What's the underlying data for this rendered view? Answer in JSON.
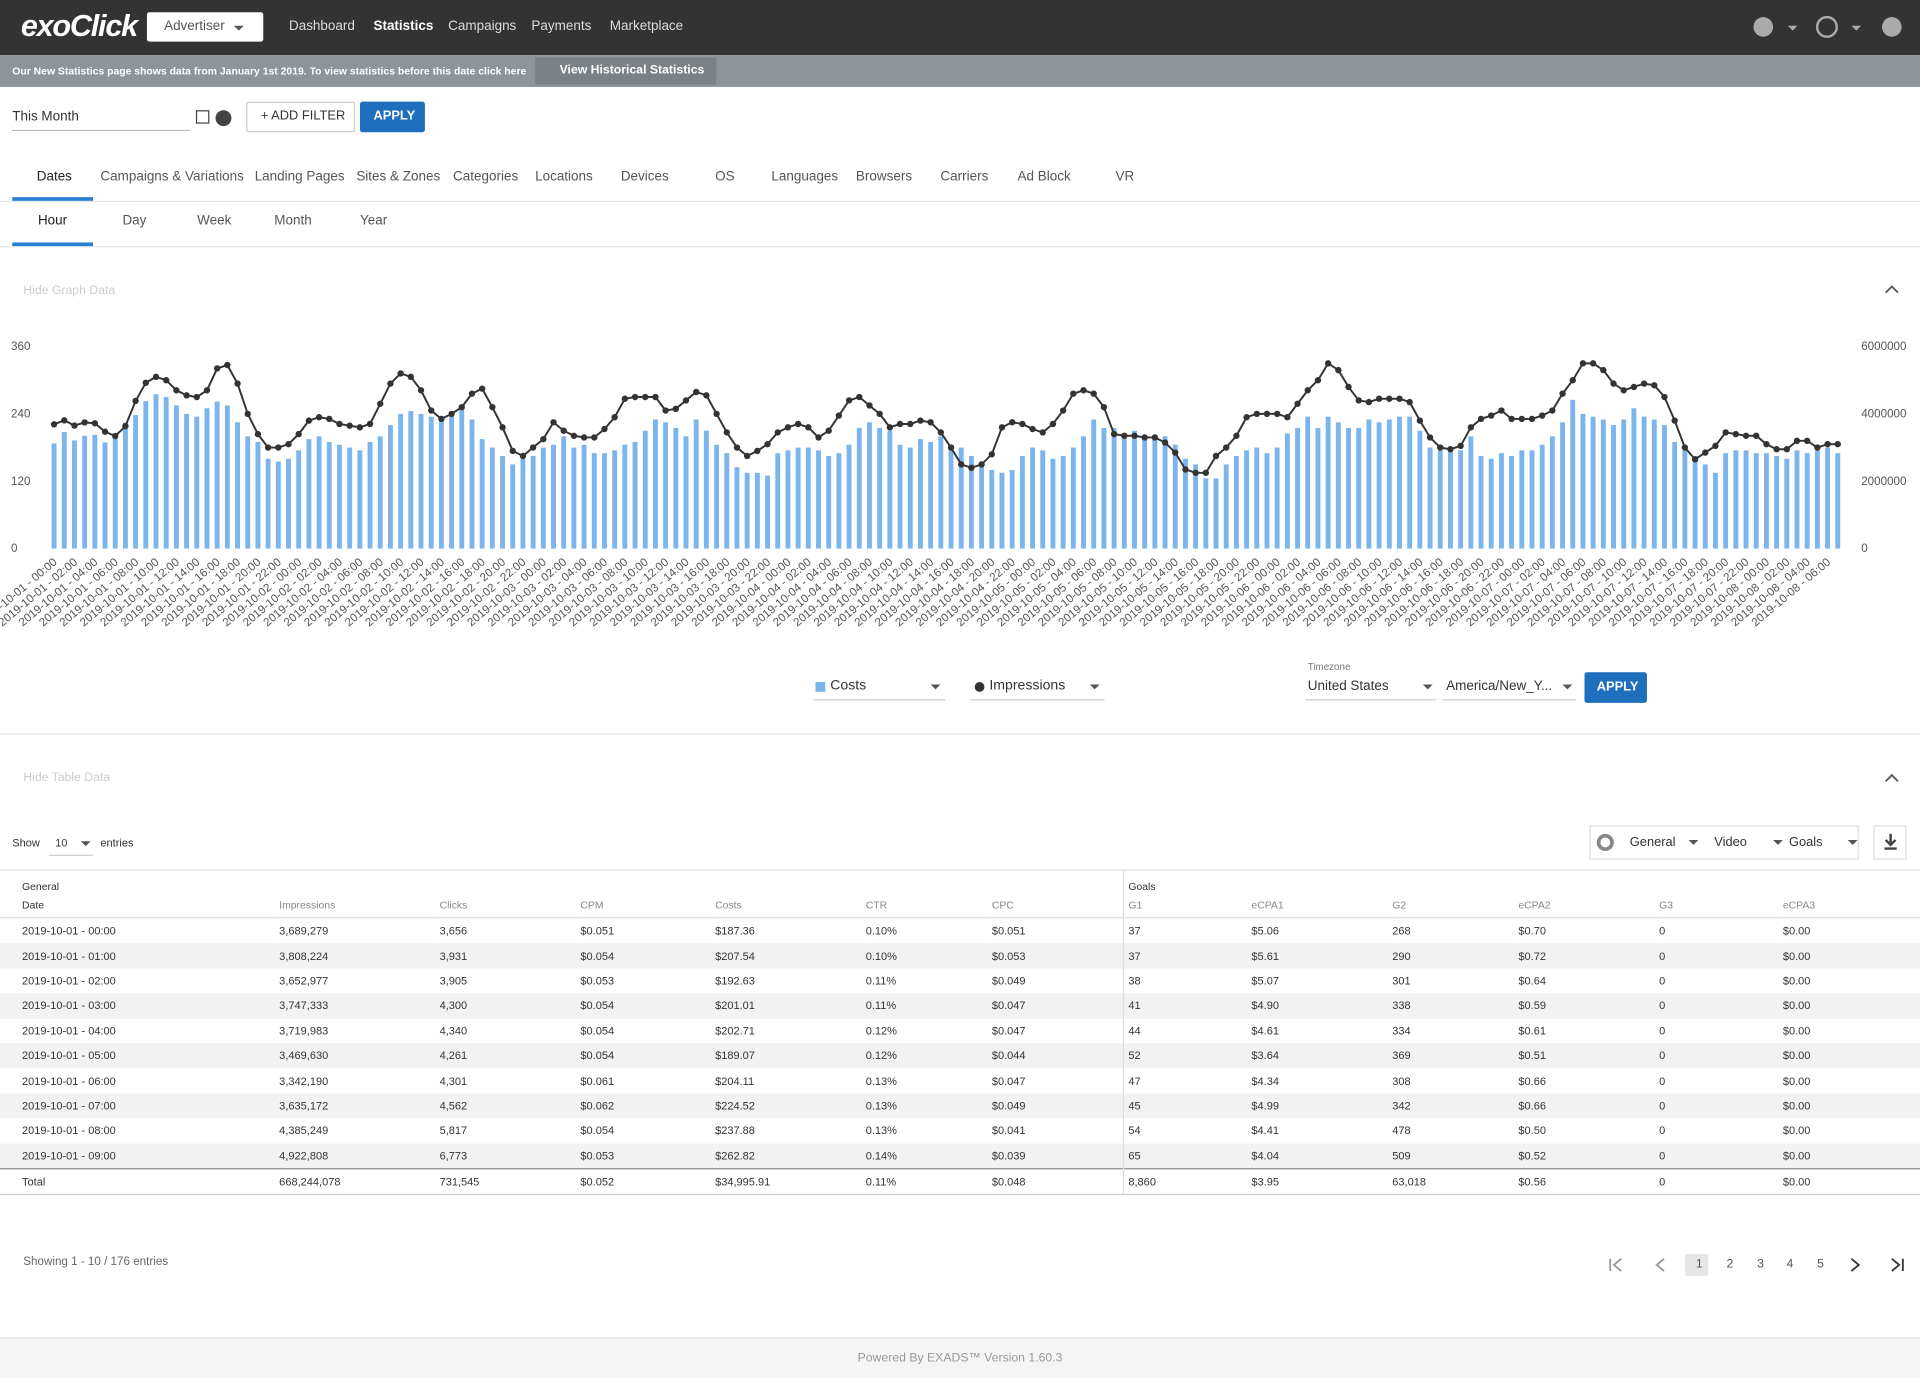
{
  "nav": {
    "logo": "exoClick",
    "role": "Advertiser",
    "items": [
      "Dashboard",
      "Statistics",
      "Campaigns",
      "Payments",
      "Marketplace"
    ]
  },
  "banner": {
    "text": "Our New Statistics page shows data from January 1st 2019. To view statistics before this date click here",
    "button": "View Historical Statistics"
  },
  "filters": {
    "period": "This Month",
    "add_filter": "+ ADD FILTER",
    "apply": "APPLY"
  },
  "tabs": [
    "Dates",
    "Campaigns & Variations",
    "Landing Pages",
    "Sites & Zones",
    "Categories",
    "Locations",
    "Devices",
    "OS",
    "Languages",
    "Browsers",
    "Carriers",
    "Ad Block",
    "VR"
  ],
  "subtabs": [
    "Hour",
    "Day",
    "Week",
    "Month",
    "Year"
  ],
  "graph_toggle": "Hide Graph Data",
  "chart_data": {
    "type": "bar",
    "categories": [
      "2019-10-01 - 00:00",
      null,
      "2019-10-01 - 02:00",
      null,
      "2019-10-01 - 04:00",
      null,
      "2019-10-01 - 06:00",
      null,
      "2019-10-01 - 08:00",
      null,
      "2019-10-01 - 10:00",
      null,
      "2019-10-01 - 12:00",
      null,
      "2019-10-01 - 14:00",
      null,
      "2019-10-01 - 16:00",
      null,
      "2019-10-01 - 18:00",
      null,
      "2019-10-01 - 20:00",
      null,
      "2019-10-01 - 22:00",
      null,
      "2019-10-02 - 00:00",
      null,
      "2019-10-02 - 02:00",
      null,
      "2019-10-02 - 04:00",
      null,
      "2019-10-02 - 06:00",
      null,
      "2019-10-02 - 08:00",
      null,
      "2019-10-02 - 10:00",
      null,
      "2019-10-02 - 12:00",
      null,
      "2019-10-02 - 14:00",
      null,
      "2019-10-02 - 16:00",
      null,
      "2019-10-02 - 18:00",
      null,
      "2019-10-02 - 20:00",
      null,
      "2019-10-02 - 22:00",
      null,
      "2019-10-03 - 00:00",
      null,
      "2019-10-03 - 02:00",
      null,
      "2019-10-03 - 04:00",
      null,
      "2019-10-03 - 06:00",
      null,
      "2019-10-03 - 08:00",
      null,
      "2019-10-03 - 10:00",
      null,
      "2019-10-03 - 12:00",
      null,
      "2019-10-03 - 14:00",
      null,
      "2019-10-03 - 16:00",
      null,
      "2019-10-03 - 18:00",
      null,
      "2019-10-03 - 20:00",
      null,
      "2019-10-03 - 22:00",
      null,
      "2019-10-04 - 00:00",
      null,
      "2019-10-04 - 02:00",
      null,
      "2019-10-04 - 04:00",
      null,
      "2019-10-04 - 06:00",
      null,
      "2019-10-04 - 08:00",
      null,
      "2019-10-04 - 10:00",
      null,
      "2019-10-04 - 12:00",
      null,
      "2019-10-04 - 14:00",
      null,
      "2019-10-04 - 16:00",
      null,
      "2019-10-04 - 18:00",
      null,
      "2019-10-04 - 20:00",
      null,
      "2019-10-04 - 22:00",
      null,
      "2019-10-05 - 00:00",
      null,
      "2019-10-05 - 02:00",
      null,
      "2019-10-05 - 04:00",
      null,
      "2019-10-05 - 06:00",
      null,
      "2019-10-05 - 08:00",
      null,
      "2019-10-05 - 10:00",
      null,
      "2019-10-05 - 12:00",
      null,
      "2019-10-05 - 14:00",
      null,
      "2019-10-05 - 16:00",
      null,
      "2019-10-05 - 18:00",
      null,
      "2019-10-05 - 20:00",
      null,
      "2019-10-05 - 22:00",
      null,
      "2019-10-06 - 00:00",
      null,
      "2019-10-06 - 02:00",
      null,
      "2019-10-06 - 04:00",
      null,
      "2019-10-06 - 06:00",
      null,
      "2019-10-06 - 08:00",
      null,
      "2019-10-06 - 10:00",
      null,
      "2019-10-06 - 12:00",
      null,
      "2019-10-06 - 14:00",
      null,
      "2019-10-06 - 16:00",
      null,
      "2019-10-06 - 18:00",
      null,
      "2019-10-06 - 20:00",
      null,
      "2019-10-06 - 22:00",
      null,
      "2019-10-07 - 00:00",
      null,
      "2019-10-07 - 02:00",
      null,
      "2019-10-07 - 04:00",
      null,
      "2019-10-07 - 06:00",
      null,
      "2019-10-07 - 08:00",
      null,
      "2019-10-07 - 10:00",
      null,
      "2019-10-07 - 12:00",
      null,
      "2019-10-07 - 14:00",
      null,
      "2019-10-07 - 16:00",
      null,
      "2019-10-07 - 18:00",
      null,
      "2019-10-07 - 20:00",
      null,
      "2019-10-07 - 22:00",
      null,
      "2019-10-08 - 00:00",
      null,
      "2019-10-08 - 02:00",
      null,
      "2019-10-08 - 04:00",
      null,
      "2019-10-08 - 06:00",
      null
    ],
    "series": [
      {
        "name": "Costs",
        "type": "bar",
        "color": "#7cb5ec",
        "values": [
          187.36,
          207.54,
          192.63,
          201.01,
          202.71,
          189.07,
          204.11,
          224.52,
          237.88,
          262.82,
          275,
          270,
          255,
          240,
          235,
          250,
          262,
          255,
          225,
          200,
          190,
          160,
          155,
          160,
          175,
          195,
          200,
          190,
          185,
          180,
          175,
          190,
          200,
          220,
          240,
          245,
          240,
          235,
          230,
          245,
          255,
          230,
          195,
          180,
          165,
          150,
          160,
          165,
          180,
          185,
          200,
          180,
          185,
          170,
          170,
          175,
          185,
          190,
          210,
          230,
          225,
          215,
          200,
          230,
          210,
          185,
          170,
          145,
          135,
          135,
          130,
          170,
          175,
          180,
          180,
          175,
          165,
          170,
          185,
          215,
          225,
          215,
          210,
          185,
          180,
          195,
          190,
          200,
          185,
          180,
          165,
          145,
          140,
          135,
          140,
          165,
          180,
          175,
          160,
          165,
          180,
          200,
          230,
          215,
          215,
          205,
          210,
          200,
          195,
          200,
          185,
          160,
          150,
          125,
          125,
          150,
          165,
          175,
          180,
          170,
          180,
          205,
          215,
          235,
          215,
          235,
          225,
          215,
          215,
          230,
          225,
          230,
          235,
          235,
          210,
          180,
          175,
          175,
          175,
          200,
          165,
          160,
          170,
          165,
          175,
          175,
          185,
          200,
          225,
          265,
          240,
          235,
          230,
          220,
          230,
          250,
          235,
          230,
          220,
          190,
          175,
          165,
          150,
          135,
          170,
          175,
          175,
          170,
          170,
          165,
          160,
          175,
          170,
          175,
          180,
          170
        ]
      },
      {
        "name": "Impressions",
        "type": "line",
        "axis": "y2",
        "color": "#333333",
        "values": [
          3689279,
          3808224,
          3652977,
          3747333,
          3719983,
          3469630,
          3342190,
          3635172,
          4385249,
          4922808,
          5100000,
          5000000,
          4700000,
          4550000,
          4500000,
          4700000,
          5350000,
          5450000,
          4900000,
          4000000,
          3400000,
          3000000,
          3000000,
          3100000,
          3400000,
          3800000,
          3900000,
          3850000,
          3700000,
          3650000,
          3600000,
          3700000,
          4300000,
          4900000,
          5200000,
          5100000,
          4700000,
          4100000,
          3850000,
          4000000,
          4200000,
          4600000,
          4750000,
          4200000,
          3600000,
          2900000,
          2750000,
          3000000,
          3250000,
          3750000,
          3500000,
          3350000,
          3300000,
          3300000,
          3550000,
          3900000,
          4450000,
          4500000,
          4500000,
          4500000,
          4100000,
          4150000,
          4400000,
          4650000,
          4550000,
          4000000,
          3450000,
          3000000,
          2750000,
          2900000,
          3100000,
          3450000,
          3600000,
          3700000,
          3600000,
          3300000,
          3500000,
          3950000,
          4400000,
          4500000,
          4250000,
          4000000,
          3600000,
          3700000,
          3700000,
          3800000,
          3750000,
          3450000,
          3000000,
          2500000,
          2400000,
          2500000,
          2800000,
          3600000,
          3750000,
          3700000,
          3550000,
          3450000,
          3700000,
          4100000,
          4600000,
          4700000,
          4600000,
          4200000,
          3400000,
          3350000,
          3350000,
          3300000,
          3300000,
          3150000,
          2850000,
          2350000,
          2250000,
          2250000,
          2750000,
          3000000,
          3350000,
          3900000,
          4000000,
          4000000,
          4000000,
          3900000,
          4300000,
          4700000,
          5000000,
          5500000,
          5300000,
          4800000,
          4400000,
          4350000,
          4450000,
          4450000,
          4450000,
          4350000,
          3800000,
          3300000,
          3000000,
          2950000,
          3050000,
          3600000,
          3850000,
          3950000,
          4100000,
          3850000,
          3850000,
          3850000,
          3950000,
          4100000,
          4600000,
          5000000,
          5500000,
          5500000,
          5300000,
          4900000,
          4700000,
          4800000,
          4900000,
          4850000,
          4500000,
          3800000,
          3000000,
          2650000,
          2850000,
          3050000,
          3450000,
          3400000,
          3350000,
          3350000,
          3100000,
          2950000,
          2950000,
          3200000,
          3200000,
          3000000,
          3100000,
          3100000
        ]
      }
    ],
    "ylim": [
      0,
      360
    ],
    "yticks": [
      0,
      120,
      240,
      360
    ],
    "y2lim": [
      0,
      6000000
    ],
    "y2ticks": [
      0,
      2000000,
      4000000,
      6000000
    ]
  },
  "timezone": {
    "label": "Timezone",
    "country": "United States",
    "zone": "America/New_Y...",
    "apply": "APPLY"
  },
  "table_toggle": "Hide Table Data",
  "entries": {
    "show": "Show",
    "count": "10",
    "suffix": "entries"
  },
  "table_controls": [
    "General",
    "Video",
    "Goals"
  ],
  "table": {
    "groups": [
      "General",
      "Goals"
    ],
    "columns": [
      "Date",
      "Impressions",
      "Clicks",
      "CPM",
      "Costs",
      "CTR",
      "CPC",
      "G1",
      "eCPA1",
      "G2",
      "eCPA2",
      "G3",
      "eCPA3"
    ],
    "rows": [
      [
        "2019-10-01 - 00:00",
        "3,689,279",
        "3,656",
        "$0.051",
        "$187.36",
        "0.10%",
        "$0.051",
        "37",
        "$5.06",
        "268",
        "$0.70",
        "0",
        "$0.00"
      ],
      [
        "2019-10-01 - 01:00",
        "3,808,224",
        "3,931",
        "$0.054",
        "$207.54",
        "0.10%",
        "$0.053",
        "37",
        "$5.61",
        "290",
        "$0.72",
        "0",
        "$0.00"
      ],
      [
        "2019-10-01 - 02:00",
        "3,652,977",
        "3,905",
        "$0.053",
        "$192.63",
        "0.11%",
        "$0.049",
        "38",
        "$5.07",
        "301",
        "$0.64",
        "0",
        "$0.00"
      ],
      [
        "2019-10-01 - 03:00",
        "3,747,333",
        "4,300",
        "$0.054",
        "$201.01",
        "0.11%",
        "$0.047",
        "41",
        "$4.90",
        "338",
        "$0.59",
        "0",
        "$0.00"
      ],
      [
        "2019-10-01 - 04:00",
        "3,719,983",
        "4,340",
        "$0.054",
        "$202.71",
        "0.12%",
        "$0.047",
        "44",
        "$4.61",
        "334",
        "$0.61",
        "0",
        "$0.00"
      ],
      [
        "2019-10-01 - 05:00",
        "3,469,630",
        "4,261",
        "$0.054",
        "$189.07",
        "0.12%",
        "$0.044",
        "52",
        "$3.64",
        "369",
        "$0.51",
        "0",
        "$0.00"
      ],
      [
        "2019-10-01 - 06:00",
        "3,342,190",
        "4,301",
        "$0.061",
        "$204.11",
        "0.13%",
        "$0.047",
        "47",
        "$4.34",
        "308",
        "$0.66",
        "0",
        "$0.00"
      ],
      [
        "2019-10-01 - 07:00",
        "3,635,172",
        "4,562",
        "$0.062",
        "$224.52",
        "0.13%",
        "$0.049",
        "45",
        "$4.99",
        "342",
        "$0.66",
        "0",
        "$0.00"
      ],
      [
        "2019-10-01 - 08:00",
        "4,385,249",
        "5,817",
        "$0.054",
        "$237.88",
        "0.13%",
        "$0.041",
        "54",
        "$4.41",
        "478",
        "$0.50",
        "0",
        "$0.00"
      ],
      [
        "2019-10-01 - 09:00",
        "4,922,808",
        "6,773",
        "$0.053",
        "$262.82",
        "0.14%",
        "$0.039",
        "65",
        "$4.04",
        "509",
        "$0.52",
        "0",
        "$0.00"
      ]
    ],
    "total": [
      "Total",
      "668,244,078",
      "731,545",
      "$0.052",
      "$34,995.91",
      "0.11%",
      "$0.048",
      "8,860",
      "$3.95",
      "63,018",
      "$0.56",
      "0",
      "$0.00"
    ]
  },
  "pagination": {
    "summary": "Showing 1 - 10 / 176 entries",
    "pages": [
      "1",
      "2",
      "3",
      "4",
      "5"
    ]
  },
  "footer": "Powered By EXADS™ Version 1.60.3"
}
